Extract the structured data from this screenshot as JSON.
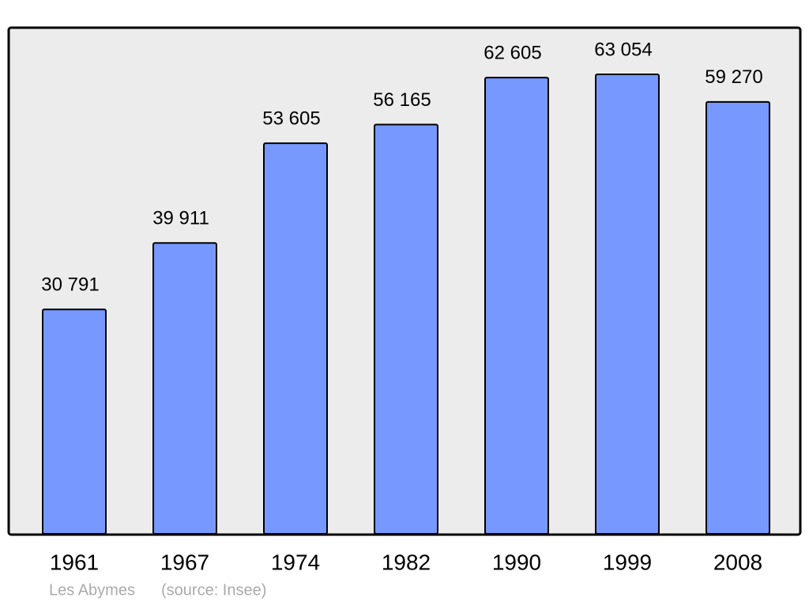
{
  "chart_data": {
    "type": "bar",
    "categories": [
      "1961",
      "1967",
      "1974",
      "1982",
      "1990",
      "1999",
      "2008"
    ],
    "values": [
      30791,
      39911,
      53605,
      56165,
      62605,
      63054,
      59270
    ],
    "value_labels": [
      "30 791",
      "39 911",
      "53 605",
      "56 165",
      "62 605",
      "63 054",
      "59 270"
    ],
    "color": "#7799ff",
    "annotations": [
      "Les Abymes",
      "(source: Insee)"
    ]
  }
}
